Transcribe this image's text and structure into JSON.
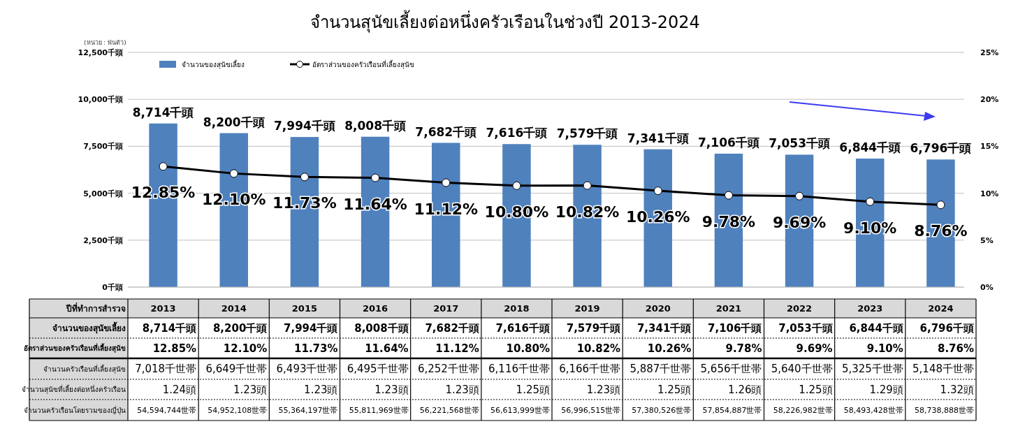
{
  "chart_data": [
    {
      "type": "bar",
      "title": "จำนวนสุนัขเลี้ยงต่อหนึ่งครัวเรือนในช่วงปี 2013-2024",
      "xlabel": "ปีที่ทำการสำรวจ",
      "annotations": [
        "(หน่วย : พันตัว)"
      ],
      "categories": [
        "2013",
        "2014",
        "2015",
        "2016",
        "2017",
        "2018",
        "2019",
        "2020",
        "2021",
        "2022",
        "2023",
        "2024"
      ],
      "series": [
        {
          "name": "จำนวนของสุนัขเลี้ยง",
          "type": "bar",
          "color": "#4f81bd",
          "values": [
            8714,
            8200,
            7994,
            8008,
            7682,
            7616,
            7579,
            7341,
            7106,
            7053,
            6844,
            6796
          ],
          "value_labels": [
            "8,714千頭",
            "8,200千頭",
            "7,994千頭",
            "8,008千頭",
            "7,682千頭",
            "7,616千頭",
            "7,579千頭",
            "7,341千頭",
            "7,106千頭",
            "7,053千頭",
            "6,844千頭",
            "6,796千頭"
          ]
        },
        {
          "name": "อัตราส่วนของครัวเรือนที่เลี้ยงสุนัข",
          "type": "line",
          "axis": "y2",
          "color": "#000000",
          "values": [
            12.85,
            12.1,
            11.73,
            11.64,
            11.12,
            10.8,
            10.82,
            10.26,
            9.78,
            9.69,
            9.1,
            8.76
          ],
          "value_labels": [
            "12.85%",
            "12.10%",
            "11.73%",
            "11.64%",
            "11.12%",
            "10.80%",
            "10.82%",
            "10.26%",
            "9.78%",
            "9.69%",
            "9.10%",
            "8.76%"
          ]
        }
      ],
      "ylim": [
        0,
        12500
      ],
      "yticks": [
        {
          "value": 0,
          "label": "0千頭"
        },
        {
          "value": 2500,
          "label": "2,500千頭"
        },
        {
          "value": 5000,
          "label": "5,000千頭"
        },
        {
          "value": 7500,
          "label": "7,500千頭"
        },
        {
          "value": 10000,
          "label": "10,000千頭"
        },
        {
          "value": 12500,
          "label": "12,500千頭"
        }
      ],
      "y2lim": [
        0,
        25
      ],
      "y2ticks": [
        {
          "value": 0,
          "label": "0%"
        },
        {
          "value": 5,
          "label": "5%"
        },
        {
          "value": 10,
          "label": "10%"
        },
        {
          "value": 15,
          "label": "15%"
        },
        {
          "value": 20,
          "label": "20%"
        },
        {
          "value": 25,
          "label": "25%"
        }
      ],
      "grid": "y",
      "legend": "top left",
      "marker": "circle",
      "line_style": "solid"
    },
    {
      "type": "other",
      "annotations": [
        "จำนวนครัวเรือนที่เลี้ยงสุนัข",
        "7,018千世帯",
        "6,649千世帯",
        "6,493千世帯",
        "6,495千世帯",
        "6,252千世帯",
        "6,116千世帯",
        "6,166千世帯",
        "5,887千世帯",
        "5,656千世帯",
        "5,640千世帯",
        "5,325千世帯",
        "5,148千世帯",
        "จำนวนสุนัขที่เลี้ยงต่อหนึ่งครัวเรือน",
        "1.24頭",
        "1.23頭",
        "1.23頭",
        "1.23頭",
        "1.23頭",
        "1.25頭",
        "1.23頭",
        "1.25頭",
        "1.26頭",
        "1.25頭",
        "1.29頭",
        "1.32頭",
        "จำนวนครัวเรือนโดยรวมของญี่ปุ่น",
        "54,594,744世帯",
        "54,952,108世帯",
        "55,364,197世帯",
        "55,811,969世帯",
        "56,221,568世帯",
        "56,613,999世帯",
        "56,996,515世帯",
        "57,380,526世帯",
        "57,854,887世帯",
        "58,226,982世帯",
        "58,493,428世帯",
        "58,738,888世帯"
      ]
    }
  ]
}
